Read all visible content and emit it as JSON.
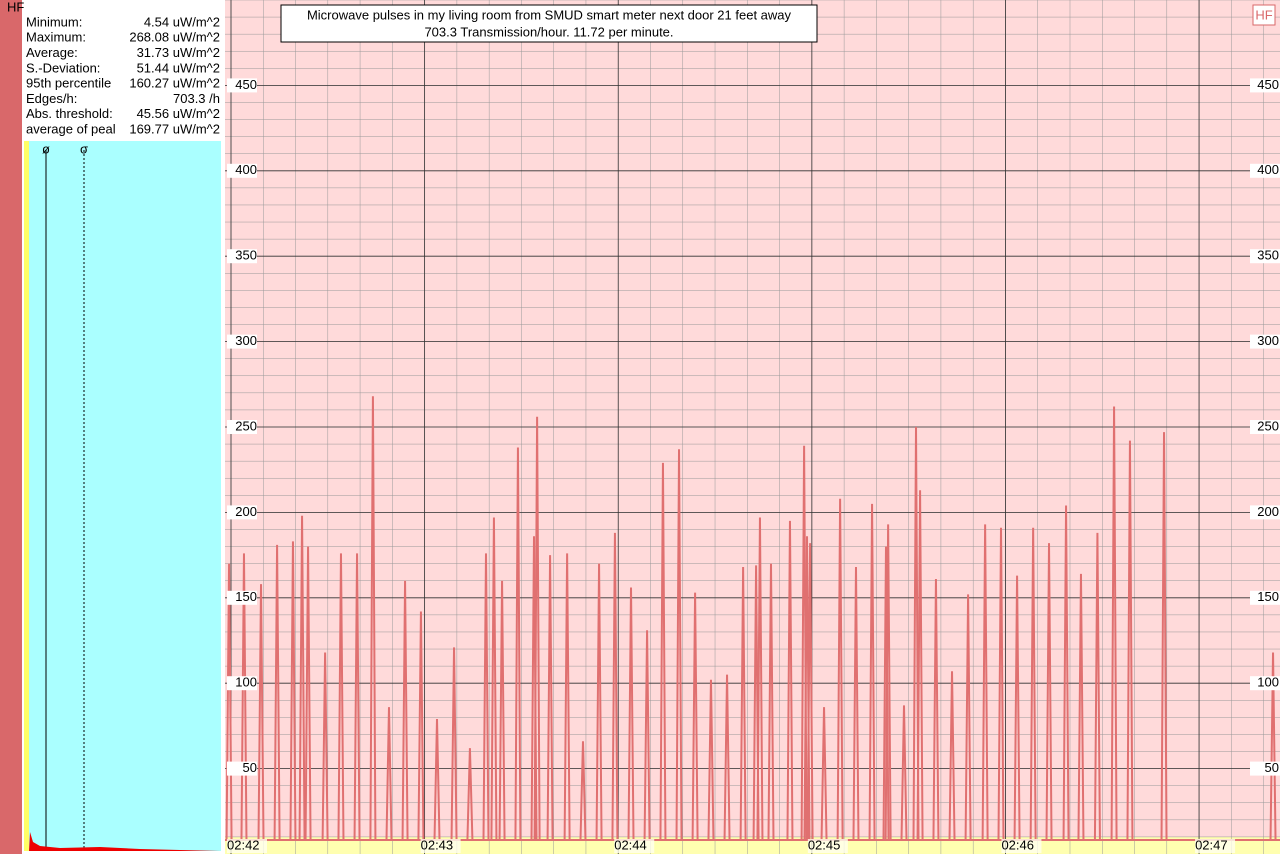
{
  "panel_label": "HF",
  "corner_label": "HF",
  "stats": [
    {
      "label": "Minimum:",
      "value": "4.54 uW/m^2"
    },
    {
      "label": "Maximum:",
      "value": "268.08 uW/m^2"
    },
    {
      "label": "Average:",
      "value": "31.73 uW/m^2"
    },
    {
      "label": "S.-Deviation:",
      "value": "51.44 uW/m^2"
    },
    {
      "label": "95th percentile",
      "value": "160.27 uW/m^2"
    },
    {
      "label": "Edges/h:",
      "value": "703.3 /h"
    },
    {
      "label": "Abs. threshold:",
      "value": "45.56 uW/m^2"
    },
    {
      "label": "average of peal",
      "value": "169.77 uW/m^2"
    }
  ],
  "histogram_markers": [
    "ø",
    "σ"
  ],
  "chart_data": {
    "type": "line",
    "title": [
      "Microwave pulses in my living room from SMUD smart meter next door 21 feet away",
      "703.3 Transmission/hour. 11.72 per minute."
    ],
    "xlim": [
      161.969,
      167.418
    ],
    "xticks": [
      {
        "value": 162,
        "label": "02:42"
      },
      {
        "value": 163,
        "label": "02:43"
      },
      {
        "value": 164,
        "label": "02:44"
      },
      {
        "value": 165,
        "label": "02:45"
      },
      {
        "value": 166,
        "label": "02:46"
      },
      {
        "value": 167,
        "label": "02:47"
      }
    ],
    "ylim": [
      0,
      500
    ],
    "yticks": [
      50,
      100,
      150,
      200,
      250,
      300,
      350,
      400,
      450
    ],
    "grid": true,
    "series": [
      {
        "name": "HF",
        "color": "#e07070",
        "x": [
          161.99,
          162.067,
          162.155,
          162.238,
          162.32,
          162.367,
          162.398,
          162.486,
          162.568,
          162.651,
          162.733,
          162.816,
          162.899,
          162.981,
          163.064,
          163.152,
          163.234,
          163.317,
          163.358,
          163.4,
          163.482,
          163.565,
          163.581,
          163.648,
          163.736,
          163.818,
          163.901,
          163.983,
          164.066,
          164.149,
          164.231,
          164.314,
          164.397,
          164.479,
          164.562,
          164.645,
          164.712,
          164.732,
          164.789,
          164.887,
          164.96,
          164.975,
          164.991,
          165.063,
          165.146,
          165.228,
          165.311,
          165.383,
          165.394,
          165.476,
          165.538,
          165.559,
          165.641,
          165.724,
          165.807,
          165.895,
          165.977,
          166.06,
          166.143,
          166.225,
          166.313,
          166.39,
          166.475,
          166.561,
          166.643,
          166.819,
          167.382
        ],
        "values": [
          170,
          176,
          158,
          181,
          183,
          198,
          180,
          118,
          176,
          176,
          268,
          86,
          160,
          142,
          79,
          121,
          62,
          176,
          197,
          160,
          238,
          186,
          256,
          175,
          176,
          66,
          170,
          188,
          156,
          131,
          229,
          237,
          153,
          102,
          105,
          168,
          169,
          197,
          170,
          195,
          239,
          186,
          182,
          86,
          208,
          168,
          205,
          180,
          193,
          87,
          250,
          213,
          161,
          107,
          152,
          193,
          191,
          163,
          191,
          182,
          204,
          164,
          188,
          262,
          242,
          247,
          118
        ]
      }
    ]
  }
}
